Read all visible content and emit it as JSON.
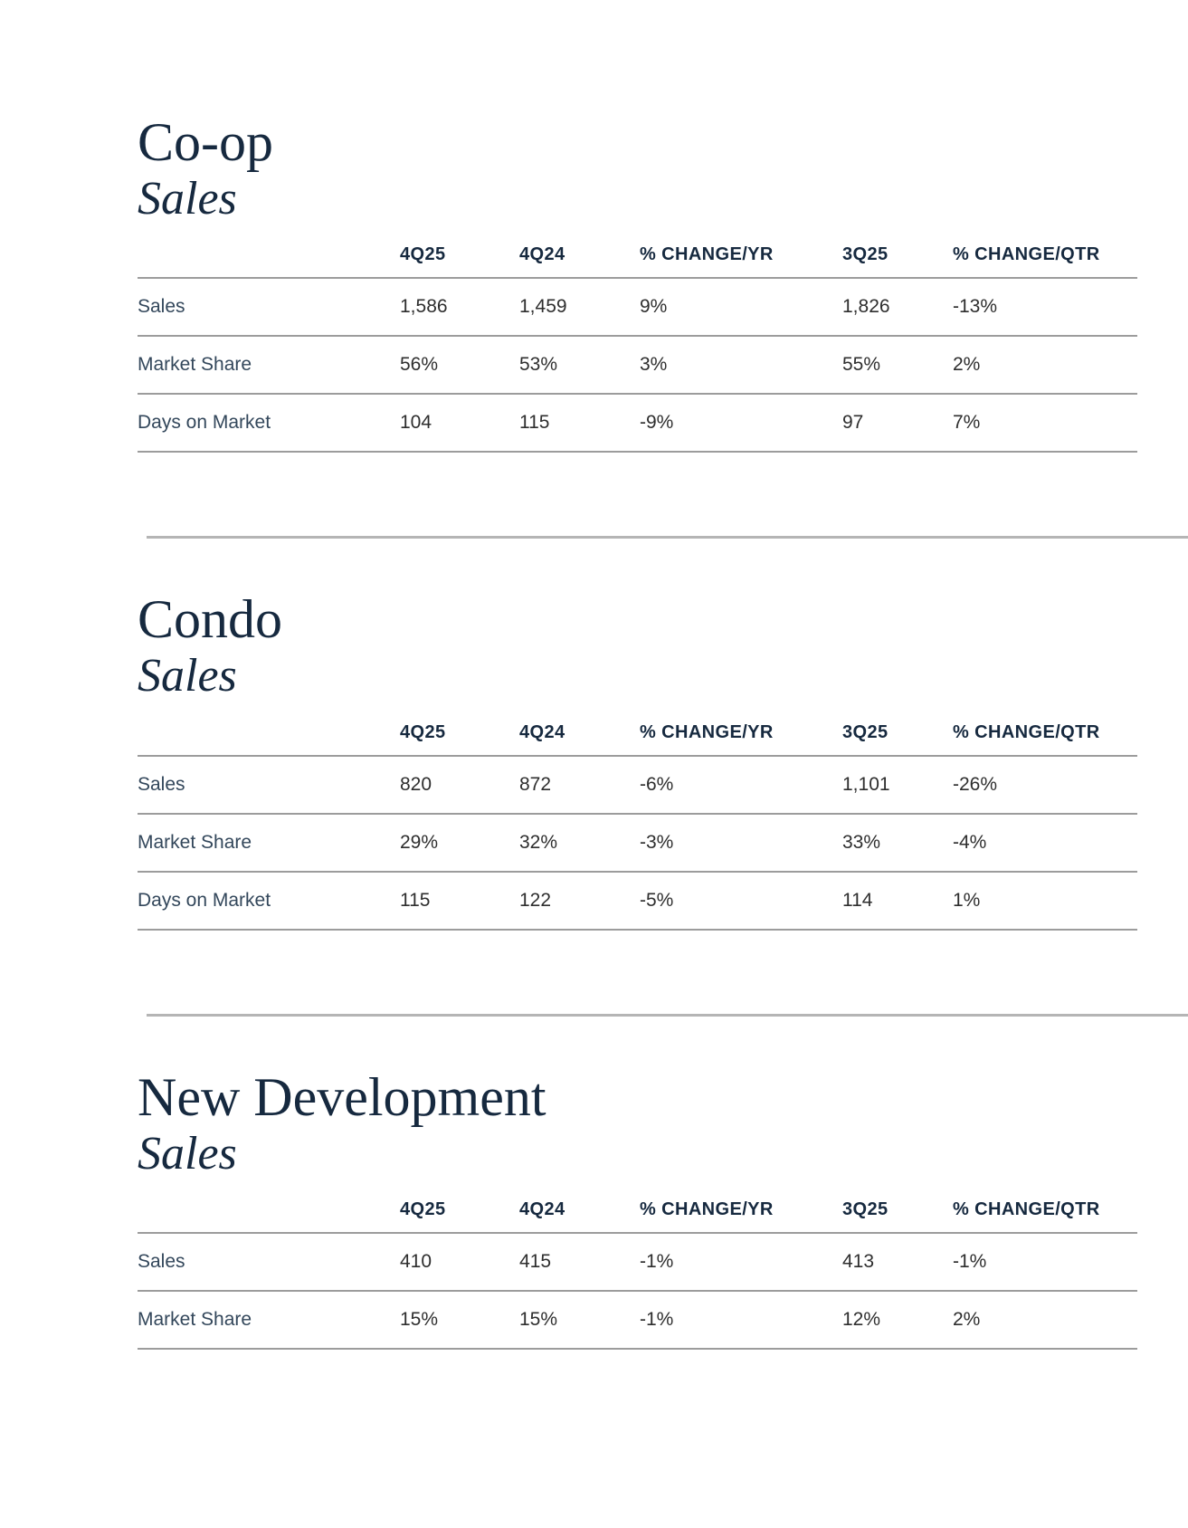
{
  "page": {
    "sections": [
      {
        "title": "Co-op",
        "subtitle": "Sales",
        "columns": [
          "4Q25",
          "4Q24",
          "% CHANGE/YR",
          "3Q25",
          "% CHANGE/QTR"
        ],
        "rows": [
          {
            "label": "Sales",
            "values": [
              "1,586",
              "1,459",
              "9%",
              "1,826",
              "-13%"
            ]
          },
          {
            "label": "Market Share",
            "values": [
              "56%",
              "53%",
              "3%",
              "55%",
              "2%"
            ]
          },
          {
            "label": "Days on Market",
            "values": [
              "104",
              "115",
              "-9%",
              "97",
              "7%"
            ]
          }
        ]
      },
      {
        "title": "Condo",
        "subtitle": "Sales",
        "columns": [
          "4Q25",
          "4Q24",
          "% CHANGE/YR",
          "3Q25",
          "% CHANGE/QTR"
        ],
        "rows": [
          {
            "label": "Sales",
            "values": [
              "820",
              "872",
              "-6%",
              "1,101",
              "-26%"
            ]
          },
          {
            "label": "Market Share",
            "values": [
              "29%",
              "32%",
              "-3%",
              "33%",
              "-4%"
            ]
          },
          {
            "label": "Days on Market",
            "values": [
              "115",
              "122",
              "-5%",
              "114",
              "1%"
            ]
          }
        ]
      },
      {
        "title": "New Development",
        "subtitle": "Sales",
        "columns": [
          "4Q25",
          "4Q24",
          "% CHANGE/YR",
          "3Q25",
          "% CHANGE/QTR"
        ],
        "rows": [
          {
            "label": "Sales",
            "values": [
              "410",
              "415",
              "-1%",
              "413",
              "-1%"
            ]
          },
          {
            "label": "Market Share",
            "values": [
              "15%",
              "15%",
              "-1%",
              "12%",
              "2%"
            ]
          }
        ]
      }
    ],
    "colors": {
      "title": "#16293f",
      "header": "#16293f",
      "row_label": "#33475b",
      "value": "#2e2e2e",
      "table_rule": "#9c9c9c",
      "section_divider": "#b5b5b5",
      "background": "#ffffff"
    }
  }
}
